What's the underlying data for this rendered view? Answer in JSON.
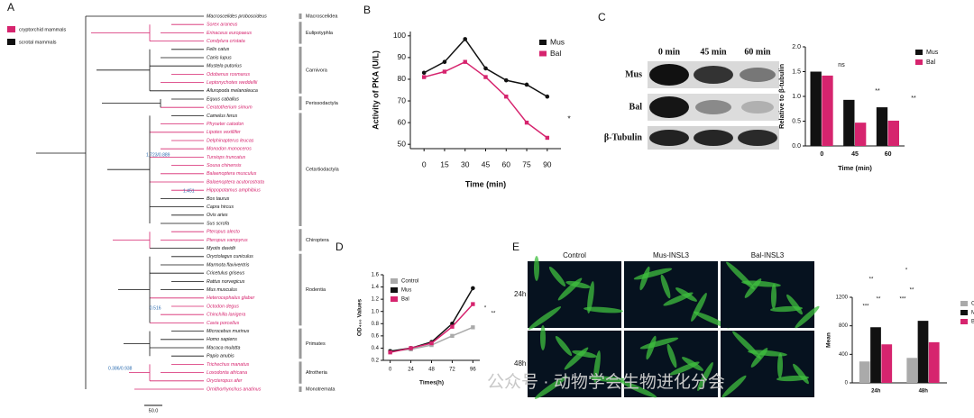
{
  "panel_labels": [
    "A",
    "B",
    "C",
    "D",
    "E"
  ],
  "tree": {
    "legend": [
      {
        "label": "cryptorchid mammals",
        "color": "#d6246e"
      },
      {
        "label": "scrotal mammals",
        "color": "#111111"
      }
    ],
    "groups": [
      {
        "name": "Macroscelidea",
        "species": [
          {
            "name": "Macroscelides proboscideus",
            "class": 1
          }
        ]
      },
      {
        "name": "Eulipotyphla",
        "species": [
          {
            "name": "Sorex araneus",
            "class": 0
          },
          {
            "name": "Erinaceus europaeus",
            "class": 0
          },
          {
            "name": "Condylura cristata",
            "class": 0
          }
        ]
      },
      {
        "name": "Carnivora",
        "species": [
          {
            "name": "Felis catus",
            "class": 1
          },
          {
            "name": "Canis lupus",
            "class": 1
          },
          {
            "name": "Mustela putorius",
            "class": 1
          },
          {
            "name": "Odobenus rosmarus",
            "class": 0
          },
          {
            "name": "Leptonychotes weddellii",
            "class": 0
          },
          {
            "name": "Ailuropoda melanoleuca",
            "class": 1
          }
        ]
      },
      {
        "name": "Perissodactyla",
        "species": [
          {
            "name": "Equus caballus",
            "class": 1
          },
          {
            "name": "Ceratotherium simum",
            "class": 0
          }
        ]
      },
      {
        "name": "Cetartiodactyla",
        "species": [
          {
            "name": "Camelus ferus",
            "class": 1
          },
          {
            "name": "Physeter catodon",
            "class": 0
          },
          {
            "name": "Lipotes vexillifer",
            "class": 0
          },
          {
            "name": "Delphinapterus leucas",
            "class": 0
          },
          {
            "name": "Monodon monoceros",
            "class": 0
          },
          {
            "name": "Tursiops truncatus",
            "class": 0
          },
          {
            "name": "Sousa chinensis",
            "class": 0
          },
          {
            "name": "Balaenoptera musculus",
            "class": 0
          },
          {
            "name": "Balaenoptera acutorostrata",
            "class": 0
          },
          {
            "name": "Hippopotamus amphibius",
            "class": 0
          },
          {
            "name": "Bos taurus",
            "class": 1
          },
          {
            "name": "Capra hircus",
            "class": 1
          },
          {
            "name": "Ovis aries",
            "class": 1
          },
          {
            "name": "Sus scrofa",
            "class": 1
          }
        ]
      },
      {
        "name": "Chiroptera",
        "species": [
          {
            "name": "Pteropus alecto",
            "class": 0
          },
          {
            "name": "Pteropus vampyrus",
            "class": 0
          },
          {
            "name": "Myotis davidii",
            "class": 1
          }
        ]
      },
      {
        "name": "Rodentia",
        "species": [
          {
            "name": "Oryctolagus cuniculus",
            "class": 1
          },
          {
            "name": "Marmota flaviventris",
            "class": 1
          },
          {
            "name": "Cricetulus griseus",
            "class": 1
          },
          {
            "name": "Rattus norvegicus",
            "class": 1
          },
          {
            "name": "Mus musculus",
            "class": 1
          },
          {
            "name": "Heterocephalus glaber",
            "class": 0
          },
          {
            "name": "Octodon degus",
            "class": 0
          },
          {
            "name": "Chinchilla lanigera",
            "class": 0
          },
          {
            "name": "Cavia porcellus",
            "class": 0
          }
        ]
      },
      {
        "name": "Primates",
        "species": [
          {
            "name": "Microcebus murinus",
            "class": 1
          },
          {
            "name": "Homo sapiens",
            "class": 1
          },
          {
            "name": "Macaca mulatta",
            "class": 1
          },
          {
            "name": "Papio anubis",
            "class": 1
          }
        ]
      },
      {
        "name": "Afrotheria",
        "species": [
          {
            "name": "Trichechus manatus",
            "class": 0
          },
          {
            "name": "Loxodonta africana",
            "class": 0
          },
          {
            "name": "Orycteropus afer",
            "class": 0
          }
        ]
      },
      {
        "name": "Monotremata",
        "species": [
          {
            "name": "Ornithorhynchus anatinus",
            "class": 0
          }
        ]
      }
    ],
    "node_labels": [
      "1.723/0.889",
      "1.451",
      "0.516",
      "0.386/0.938"
    ],
    "scale": "50.0"
  },
  "blot": {
    "columns": [
      "0 min",
      "45 min",
      "60 min"
    ],
    "rows": [
      "Mus",
      "Bal",
      "β-Tubulin"
    ]
  },
  "images": {
    "columns": [
      "Control",
      "Mus-INSL3",
      "Bal-INSL3"
    ],
    "rows": [
      "24h",
      "48h"
    ]
  },
  "watermark": "公众号 · 动物学会生物进化分会",
  "chart_data": [
    {
      "type": "line",
      "y_label": "Activity of PKA (U/L)",
      "x_label": "Time (min)",
      "x": [
        0,
        15,
        30,
        45,
        60,
        75,
        90
      ],
      "xlim": [
        -10,
        100
      ],
      "xticks": [
        0,
        15,
        30,
        45,
        60,
        75,
        90
      ],
      "ylim": [
        48,
        102
      ],
      "yticks": [
        50,
        60,
        70,
        80,
        90,
        100
      ],
      "series": [
        {
          "name": "Mus",
          "color": "#111111",
          "values": [
            83,
            88,
            98.5,
            85,
            79.5,
            77.5,
            72
          ]
        },
        {
          "name": "Bal",
          "color": "#d6246e",
          "values": [
            81,
            83.5,
            88,
            81,
            72,
            60,
            53
          ]
        }
      ],
      "annotations": [
        "*"
      ]
    },
    {
      "type": "bar",
      "y_label": "Relative to β-tubulin",
      "x_label": "Time (min)",
      "categories": [
        "0",
        "45",
        "60"
      ],
      "ylim": [
        0,
        2
      ],
      "yticks": [
        {
          "value": 0,
          "label": "0.0"
        },
        {
          "value": 0.5,
          "label": "0.5"
        },
        {
          "value": 1,
          "label": "1.0"
        },
        {
          "value": 1.5,
          "label": "1.5"
        },
        {
          "value": 2,
          "label": "2.0"
        }
      ],
      "series": [
        {
          "name": "Mus",
          "color": "#111111",
          "values": [
            1.5,
            0.93,
            0.78
          ]
        },
        {
          "name": "Bal",
          "color": "#d6246e",
          "values": [
            1.42,
            0.47,
            0.51
          ]
        }
      ],
      "annotations": [
        "ns",
        "**",
        "**"
      ]
    },
    {
      "type": "line",
      "y_label": "OD₄₅₀ Values",
      "x_label": "Times(h)",
      "x": [
        0,
        24,
        48,
        72,
        96
      ],
      "xlim": [
        -8,
        104
      ],
      "xticks": [
        0,
        24,
        48,
        72,
        96
      ],
      "ylim": [
        0.2,
        1.6
      ],
      "yticks": [
        0.2,
        0.4,
        0.6,
        0.8,
        {
          "value": 1,
          "label": "1.0"
        },
        1.2,
        1.4,
        1.6
      ],
      "series": [
        {
          "name": "Control",
          "color": "#aaaaaa",
          "values": [
            0.35,
            0.38,
            0.45,
            0.6,
            0.74
          ]
        },
        {
          "name": "Mus",
          "color": "#111111",
          "values": [
            0.35,
            0.4,
            0.5,
            0.8,
            1.38
          ]
        },
        {
          "name": "Bal",
          "color": "#d6246e",
          "values": [
            0.33,
            0.4,
            0.48,
            0.75,
            1.12
          ]
        }
      ],
      "annotations": [
        "*",
        "**"
      ]
    },
    {
      "type": "bar",
      "y_label": "Mean",
      "categories": [
        "24h",
        "48h"
      ],
      "ylim": [
        0,
        1200
      ],
      "yticks": [
        0,
        400,
        800,
        1200
      ],
      "series": [
        {
          "name": "Control",
          "color": "#aaaaaa",
          "values": [
            300,
            350
          ]
        },
        {
          "name": "Mus",
          "color": "#111111",
          "values": [
            780,
            870
          ]
        },
        {
          "name": "Bal",
          "color": "#d6246e",
          "values": [
            540,
            570
          ]
        }
      ],
      "annotations": [
        "**",
        "**",
        "***",
        "*",
        "**",
        "***"
      ]
    }
  ]
}
